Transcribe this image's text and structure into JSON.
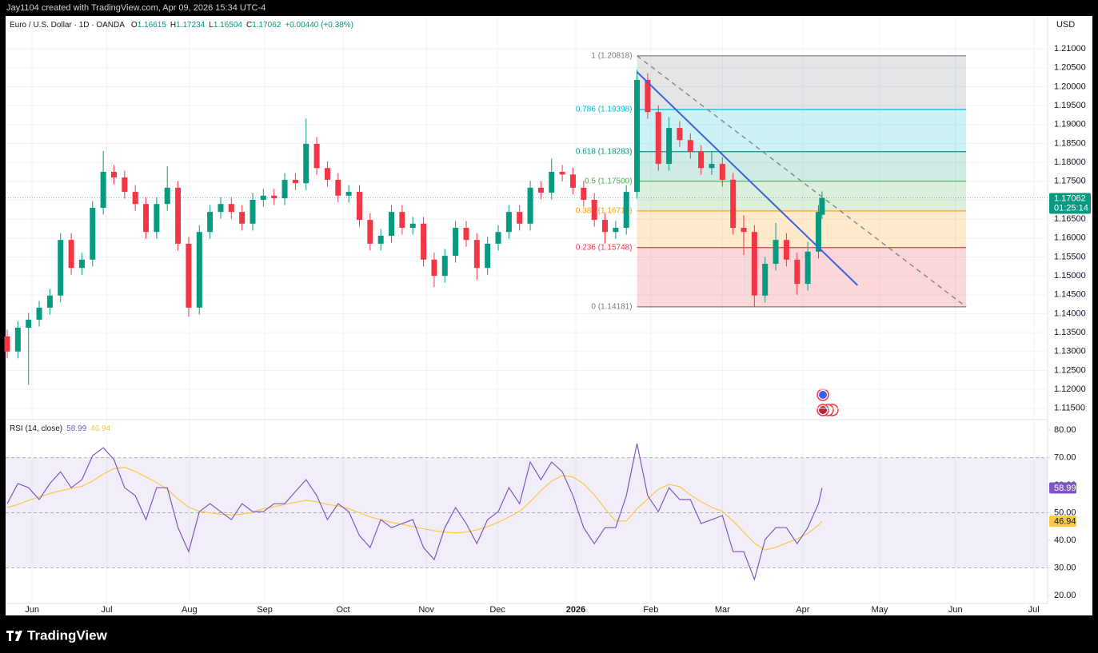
{
  "header": {
    "credit": "Jay1104 created with TradingView.com, Apr 09, 2026 15:34 UTC-4",
    "brand": "TradingView"
  },
  "chart_data": {
    "type": "candlestick",
    "title": "Euro / U.S. Dollar · 1D · OANDA",
    "ohlc_keys": [
      "O",
      "H",
      "L",
      "C"
    ],
    "change": "+0.00440 (+0.38%)",
    "currency": "USD",
    "up_color": "#089981",
    "down_color": "#f23645",
    "x": [
      0,
      3,
      6,
      9,
      12,
      15,
      18,
      21,
      24,
      27,
      30,
      33,
      36,
      39,
      42,
      45,
      48,
      51,
      54,
      57,
      60,
      63,
      66,
      69,
      72,
      75,
      78,
      81,
      84,
      87,
      90,
      93,
      96,
      99,
      102,
      105,
      108,
      111,
      114,
      117,
      120,
      123,
      126,
      129,
      132,
      135,
      138,
      141,
      144,
      147,
      150,
      153,
      156,
      159,
      162,
      165,
      168,
      171,
      174,
      177,
      180,
      183,
      186,
      189,
      192,
      195,
      198,
      201,
      204,
      207,
      210,
      213,
      216,
      219,
      222,
      225,
      228,
      229
    ],
    "open": [
      1.134,
      1.13,
      1.1363,
      1.1384,
      1.1416,
      1.1448,
      1.1595,
      1.1521,
      1.1543,
      1.168,
      1.1775,
      1.176,
      1.1722,
      1.169,
      1.1616,
      1.169,
      1.1733,
      1.1585,
      1.1416,
      1.1616,
      1.1669,
      1.169,
      1.1669,
      1.1638,
      1.1701,
      1.1712,
      1.1705,
      1.1754,
      1.1745,
      1.1849,
      1.1785,
      1.1754,
      1.1712,
      1.1722,
      1.1648,
      1.1585,
      1.1606,
      1.1669,
      1.1627,
      1.1638,
      1.1543,
      1.15,
      1.1553,
      1.1627,
      1.1595,
      1.1521,
      1.1585,
      1.1616,
      1.1669,
      1.1638,
      1.1733,
      1.172,
      1.1775,
      1.1768,
      1.1733,
      1.1701,
      1.1648,
      1.1616,
      1.1627,
      1.1722,
      1.2018,
      1.1933,
      1.1796,
      1.1891,
      1.1859,
      1.1828,
      1.1785,
      1.1796,
      1.1754,
      1.1627,
      1.1616,
      1.1448,
      1.1532,
      1.1595,
      1.1543,
      1.1479,
      1.1564,
      1.16615
    ],
    "high": [
      1.1358,
      1.1381,
      1.1402,
      1.1434,
      1.1466,
      1.1613,
      1.1613,
      1.1561,
      1.1698,
      1.183,
      1.1793,
      1.1778,
      1.174,
      1.1708,
      1.1708,
      1.179,
      1.1751,
      1.1603,
      1.1634,
      1.1687,
      1.1708,
      1.1708,
      1.1687,
      1.1719,
      1.173,
      1.173,
      1.1772,
      1.1772,
      1.1916,
      1.1867,
      1.1803,
      1.1772,
      1.174,
      1.174,
      1.1666,
      1.1624,
      1.1687,
      1.1687,
      1.1656,
      1.1656,
      1.1561,
      1.1571,
      1.1645,
      1.1645,
      1.1613,
      1.1603,
      1.1634,
      1.1687,
      1.1687,
      1.1751,
      1.1751,
      1.181,
      1.1793,
      1.1786,
      1.1751,
      1.1719,
      1.1666,
      1.1645,
      1.174,
      1.2045,
      1.2036,
      1.1951,
      1.192,
      1.1909,
      1.1877,
      1.1846,
      1.183,
      1.1814,
      1.1772,
      1.166,
      1.1634,
      1.155,
      1.164,
      1.1613,
      1.1561,
      1.159,
      1.1687,
      1.17234
    ],
    "low": [
      1.1282,
      1.1282,
      1.1212,
      1.1366,
      1.1398,
      1.143,
      1.1503,
      1.1503,
      1.1525,
      1.1662,
      1.1742,
      1.1704,
      1.1672,
      1.1598,
      1.1598,
      1.1672,
      1.1567,
      1.1392,
      1.1398,
      1.1598,
      1.1651,
      1.1651,
      1.162,
      1.162,
      1.1683,
      1.1687,
      1.1687,
      1.1727,
      1.1727,
      1.1767,
      1.1736,
      1.1694,
      1.1694,
      1.163,
      1.1567,
      1.1567,
      1.1588,
      1.1609,
      1.1609,
      1.1525,
      1.147,
      1.1482,
      1.1535,
      1.1577,
      1.149,
      1.1503,
      1.1567,
      1.1598,
      1.162,
      1.162,
      1.1702,
      1.1702,
      1.175,
      1.1715,
      1.1683,
      1.163,
      1.1585,
      1.1598,
      1.1609,
      1.1704,
      1.1915,
      1.1778,
      1.1778,
      1.1841,
      1.181,
      1.1767,
      1.1767,
      1.1736,
      1.1609,
      1.1555,
      1.1418,
      1.143,
      1.1514,
      1.1525,
      1.145,
      1.1461,
      1.1546,
      1.16504
    ],
    "close": [
      1.13,
      1.1363,
      1.1384,
      1.1416,
      1.1448,
      1.1595,
      1.1521,
      1.1543,
      1.168,
      1.1775,
      1.176,
      1.1722,
      1.169,
      1.1616,
      1.169,
      1.1733,
      1.1585,
      1.1416,
      1.1616,
      1.1669,
      1.169,
      1.1669,
      1.1638,
      1.1701,
      1.1712,
      1.1705,
      1.1754,
      1.1745,
      1.1849,
      1.1785,
      1.1754,
      1.1712,
      1.1722,
      1.1648,
      1.1585,
      1.1606,
      1.1669,
      1.1627,
      1.1638,
      1.1543,
      1.15,
      1.1553,
      1.1627,
      1.1595,
      1.1521,
      1.1585,
      1.1616,
      1.1669,
      1.1638,
      1.1733,
      1.172,
      1.1775,
      1.1768,
      1.1733,
      1.1701,
      1.1648,
      1.1616,
      1.1627,
      1.1722,
      1.2018,
      1.1933,
      1.1796,
      1.1891,
      1.1859,
      1.1828,
      1.1785,
      1.1796,
      1.1754,
      1.1627,
      1.1616,
      1.1448,
      1.1532,
      1.1595,
      1.1543,
      1.1479,
      1.1564,
      1.1669,
      1.17062
    ],
    "xlim": [
      -0.45,
      292.4
    ],
    "xticks": [
      {
        "value": 7,
        "label": "Jun"
      },
      {
        "value": 28,
        "label": "Jul"
      },
      {
        "value": 51.2,
        "label": "Aug"
      },
      {
        "value": 72.4,
        "label": "Sep"
      },
      {
        "value": 94.4,
        "label": "Oct"
      },
      {
        "value": 117.8,
        "label": "Nov"
      },
      {
        "value": 137.8,
        "label": "Dec"
      },
      {
        "value": 159.8,
        "label": "2026"
      },
      {
        "value": 180.9,
        "label": "Feb"
      },
      {
        "value": 201,
        "label": "Mar"
      },
      {
        "value": 223.6,
        "label": "Apr"
      },
      {
        "value": 245.2,
        "label": "May"
      },
      {
        "value": 266.5,
        "label": "Jun"
      },
      {
        "value": 288.5,
        "label": "Jul"
      }
    ],
    "ylim": [
      1.112,
      1.2187
    ],
    "yticks": [
      {
        "value": 1.115,
        "label": "1.11500"
      },
      {
        "value": 1.12,
        "label": "1.12000"
      },
      {
        "value": 1.125,
        "label": "1.12500"
      },
      {
        "value": 1.13,
        "label": "1.13000"
      },
      {
        "value": 1.135,
        "label": "1.13500"
      },
      {
        "value": 1.14,
        "label": "1.14000"
      },
      {
        "value": 1.145,
        "label": "1.14500"
      },
      {
        "value": 1.15,
        "label": "1.15000"
      },
      {
        "value": 1.155,
        "label": "1.15500"
      },
      {
        "value": 1.16,
        "label": "1.16000"
      },
      {
        "value": 1.165,
        "label": "1.16500"
      },
      {
        "value": 1.17,
        "label": "1.17000"
      },
      {
        "value": 1.175,
        "label": "1.17500"
      },
      {
        "value": 1.18,
        "label": "1.18000"
      },
      {
        "value": 1.185,
        "label": "1.18500"
      },
      {
        "value": 1.19,
        "label": "1.19000"
      },
      {
        "value": 1.195,
        "label": "1.19500"
      },
      {
        "value": 1.2,
        "label": "1.20000"
      },
      {
        "value": 1.205,
        "label": "1.20500"
      },
      {
        "value": 1.21,
        "label": "1.21000"
      }
    ],
    "countdown": "01:25:14",
    "fibonacci": {
      "x": [
        177,
        269.5
      ],
      "levels": [
        {
          "label": "1 (1.20818)",
          "price": 1.20818,
          "color": "#787b86"
        },
        {
          "label": "0.786 (1.19398)",
          "price": 1.19398,
          "color": "#00bcd4"
        },
        {
          "label": "0.618 (1.18283)",
          "price": 1.18283,
          "color": "#089981"
        },
        {
          "label": "0.5 (1.17500)",
          "price": 1.175,
          "color": "#4caf50"
        },
        {
          "label": "0.382 (1.16716)",
          "price": 1.16716,
          "color": "#ff9800"
        },
        {
          "label": "0.236 (1.15748)",
          "price": 1.15748,
          "color": "#f23645"
        },
        {
          "label": "0 (1.14181)",
          "price": 1.14181,
          "color": "#787b86"
        }
      ]
    },
    "trend_lines": [
      {
        "x": [
          177,
          239
        ],
        "y": [
          1.2039,
          1.1475
        ],
        "color": "#3a62e0",
        "dashed": false
      },
      {
        "x": [
          177,
          269.5
        ],
        "y": [
          1.20818,
          1.14181
        ],
        "color": "#8a8a8a",
        "dashed": true
      }
    ],
    "rsi": {
      "type": "line",
      "title": "RSI (14, close)",
      "ylim": [
        17.1,
        83.8
      ],
      "yticks": [
        {
          "value": 20,
          "label": "20.00"
        },
        {
          "value": 30,
          "label": "30.00"
        },
        {
          "value": 40,
          "label": "40.00"
        },
        {
          "value": 50,
          "label": "50.00"
        },
        {
          "value": 60,
          "label": "60.00"
        },
        {
          "value": 70,
          "label": "70.00"
        },
        {
          "value": 80,
          "label": "80.00"
        }
      ],
      "band": [
        30,
        70
      ],
      "midline": 50,
      "series": [
        {
          "color": "#7e57c2",
          "values": [
            53.3,
            60.6,
            59.1,
            54.8,
            60.6,
            64.9,
            59.1,
            62.0,
            70.7,
            73.6,
            69.3,
            59.1,
            56.2,
            47.5,
            59.1,
            59.1,
            44.6,
            35.9,
            50.4,
            53.3,
            50.4,
            47.5,
            53.3,
            50.4,
            50.4,
            53.3,
            53.3,
            57.7,
            62.0,
            56.2,
            47.5,
            53.3,
            50.4,
            41.7,
            37.4,
            47.5,
            44.6,
            46.1,
            47.5,
            37.4,
            33.0,
            44.6,
            51.9,
            46.1,
            38.8,
            47.5,
            50.4,
            59.1,
            53.3,
            68.4,
            62.0,
            68.4,
            64.9,
            56.2,
            44.6,
            38.8,
            44.6,
            44.6,
            56.2,
            75.1,
            56.2,
            50.4,
            59.1,
            54.8,
            54.8,
            46.1,
            47.5,
            49.0,
            35.9,
            35.9,
            25.8,
            40.3,
            44.6,
            44.6,
            38.8,
            44.6,
            53.3,
            58.99
          ]
        },
        {
          "color": "#f7c948",
          "values": [
            51.9,
            53,
            54.5,
            55.8,
            57,
            58,
            58.8,
            59.6,
            61.5,
            64,
            66,
            66.5,
            65,
            63,
            61,
            58.5,
            55,
            52,
            50.5,
            50,
            49.5,
            49.2,
            49.5,
            50.2,
            51.5,
            52.2,
            53,
            53.8,
            54.5,
            54,
            53,
            52.5,
            51.5,
            50,
            48.5,
            47.5,
            46.5,
            45.8,
            45,
            44.2,
            43.5,
            43,
            42.7,
            43,
            43.8,
            45,
            46.5,
            48.5,
            50.5,
            54,
            58,
            61.5,
            63.5,
            63,
            60.5,
            56.5,
            51.5,
            47,
            47,
            51.5,
            55,
            58.5,
            60.3,
            59.5,
            56.5,
            54,
            52,
            50.5,
            47,
            43,
            39,
            36.5,
            37.5,
            39,
            40.5,
            42.5,
            45.5,
            46.94
          ]
        }
      ]
    }
  }
}
